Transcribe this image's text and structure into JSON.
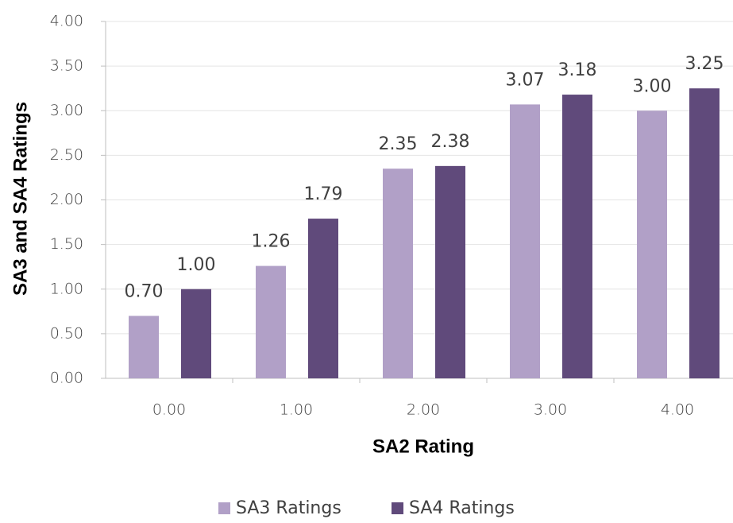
{
  "chart_data": {
    "type": "bar",
    "xlabel": "SA2 Rating",
    "ylabel": "SA3 and SA4 Ratings",
    "categories": [
      "0.00",
      "1.00",
      "2.00",
      "3.00",
      "4.00"
    ],
    "series": [
      {
        "name": "SA3 Ratings",
        "color": "#b1a0c7",
        "values": [
          0.7,
          1.26,
          2.35,
          3.07,
          3.0
        ],
        "value_labels": [
          "0.70",
          "1.26",
          "2.35",
          "3.07",
          "3.00"
        ]
      },
      {
        "name": "SA4 Ratings",
        "color": "#604a7b",
        "values": [
          1.0,
          1.79,
          2.38,
          3.18,
          3.25
        ],
        "value_labels": [
          "1.00",
          "1.79",
          "2.38",
          "3.18",
          "3.25"
        ]
      }
    ],
    "ylim": [
      0,
      4
    ],
    "yticks": [
      {
        "value": 0,
        "label": "0.00"
      },
      {
        "value": 0.5,
        "label": "0.50"
      },
      {
        "value": 1,
        "label": "1.00"
      },
      {
        "value": 1.5,
        "label": "1.50"
      },
      {
        "value": 2,
        "label": "2.00"
      },
      {
        "value": 2.5,
        "label": "2.50"
      },
      {
        "value": 3,
        "label": "3.00"
      },
      {
        "value": 3.5,
        "label": "3.50"
      },
      {
        "value": 4,
        "label": "4.00"
      }
    ],
    "grid": true,
    "legend": "bottom"
  }
}
